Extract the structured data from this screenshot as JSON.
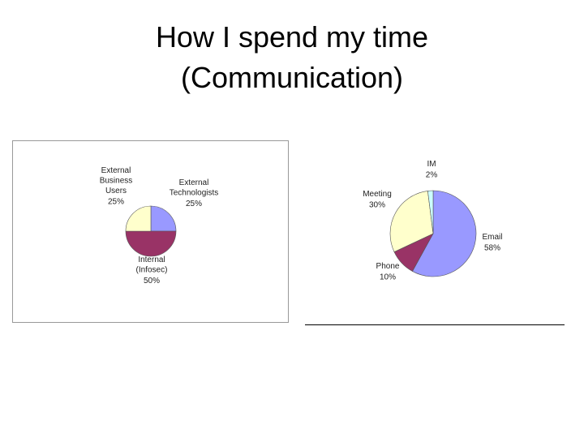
{
  "slide": {
    "title_lines": [
      "How I spend my time",
      "(Communication)"
    ]
  },
  "chart_data": [
    {
      "type": "pie",
      "categories": [
        [
          "External",
          "Technologists"
        ],
        [
          "Internal",
          "(Infosec)"
        ],
        [
          "External",
          "Business",
          "Users"
        ]
      ],
      "values": [
        25,
        50,
        25
      ],
      "value_labels": [
        "25%",
        "50%",
        "25%"
      ],
      "colors": [
        "#9999ff",
        "#993366",
        "#ffffcc"
      ]
    },
    {
      "type": "pie",
      "categories": [
        [
          "Email"
        ],
        [
          "Phone"
        ],
        [
          "Meeting"
        ],
        [
          "IM"
        ]
      ],
      "values": [
        58,
        10,
        30,
        2
      ],
      "value_labels": [
        "58%",
        "10%",
        "30%",
        "2%"
      ],
      "colors": [
        "#9999ff",
        "#993366",
        "#ffffcc",
        "#ccffff"
      ]
    }
  ]
}
